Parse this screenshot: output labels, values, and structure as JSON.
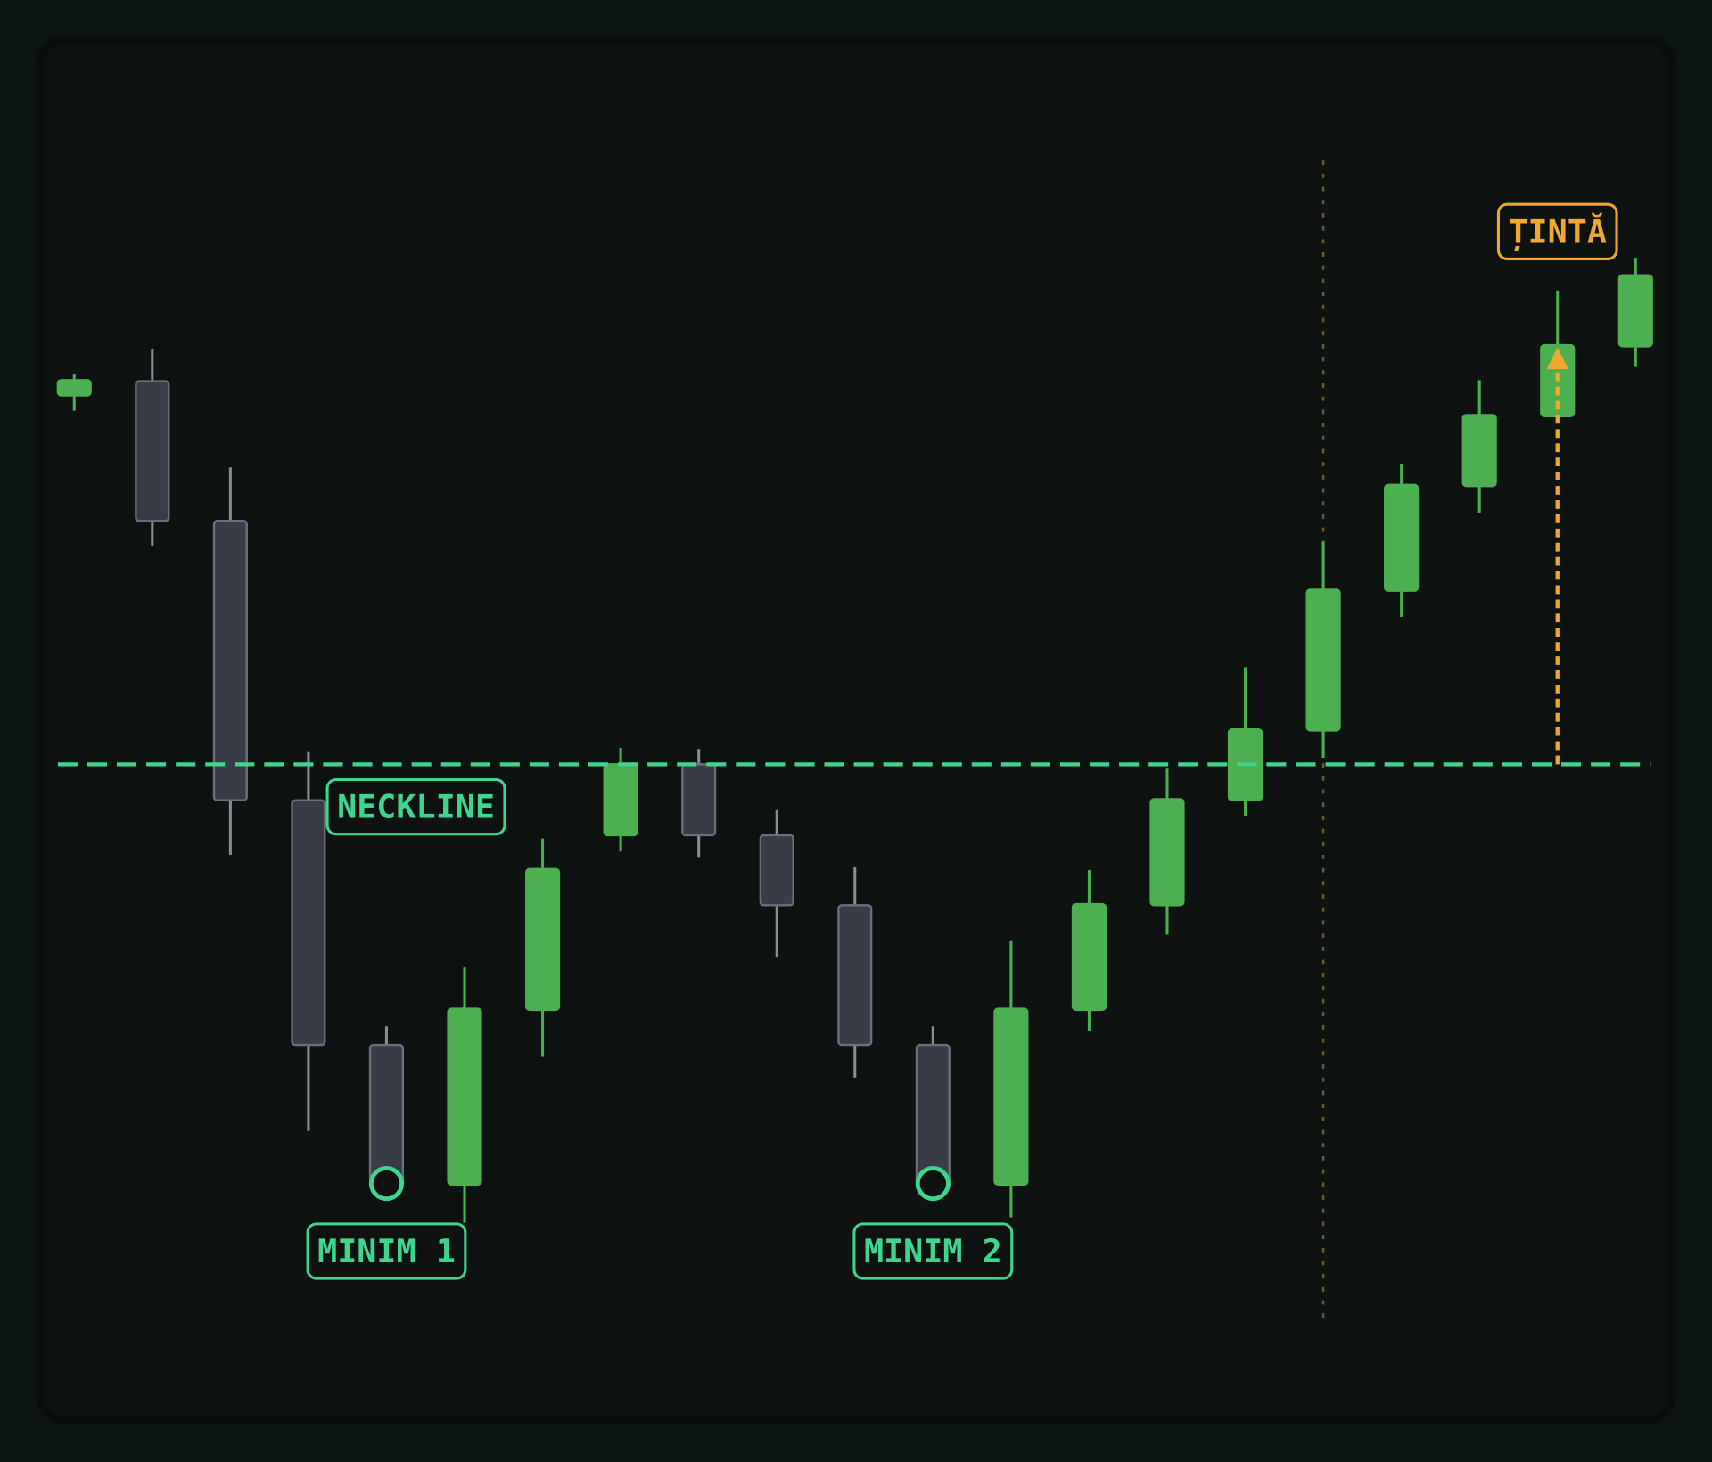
{
  "chart_data": {
    "type": "candlestick",
    "open": [
      93.8,
      95.1,
      82.3,
      56.7,
      34.3,
      21.5,
      37.5,
      53.5,
      60,
      53.5,
      47.1,
      34.3,
      21.5,
      37.5,
      47.1,
      56.7,
      63.1,
      75.9,
      85.5,
      91.9,
      98.3
    ],
    "high": [
      95.8,
      98,
      87.2,
      61.2,
      36,
      41.4,
      53.2,
      61.5,
      61.4,
      55.8,
      50.6,
      36,
      43.8,
      50.3,
      59.6,
      68.9,
      80.4,
      87.5,
      95.2,
      103.4,
      106.4
    ],
    "low": [
      92.4,
      80,
      51.7,
      26.4,
      21.6,
      18,
      33.2,
      52,
      51.5,
      42.3,
      31.3,
      21.6,
      18.5,
      35.6,
      44.4,
      55.3,
      60.6,
      73.5,
      83,
      91.9,
      96.4
    ],
    "close": [
      95.2,
      82.3,
      56.7,
      34.3,
      21.6,
      37.6,
      50.4,
      60,
      53.5,
      47.1,
      34.3,
      21.6,
      37.6,
      47.2,
      56.8,
      63.2,
      76,
      85.6,
      92,
      98.4,
      104.8
    ],
    "up_color": "#4caf50",
    "down_color": "#393b47",
    "ylim": [
      0,
      130
    ],
    "neckline": {
      "label": "NECKLINE",
      "value": 60,
      "color": "#3dd68c"
    },
    "minima": [
      {
        "label": "MINIM 1",
        "index": 4
      },
      {
        "label": "MINIM 2",
        "index": 11
      }
    ],
    "target": {
      "label": "ȚINTĂ",
      "value": 98.2,
      "index": 19,
      "color": "#f0a830"
    }
  }
}
